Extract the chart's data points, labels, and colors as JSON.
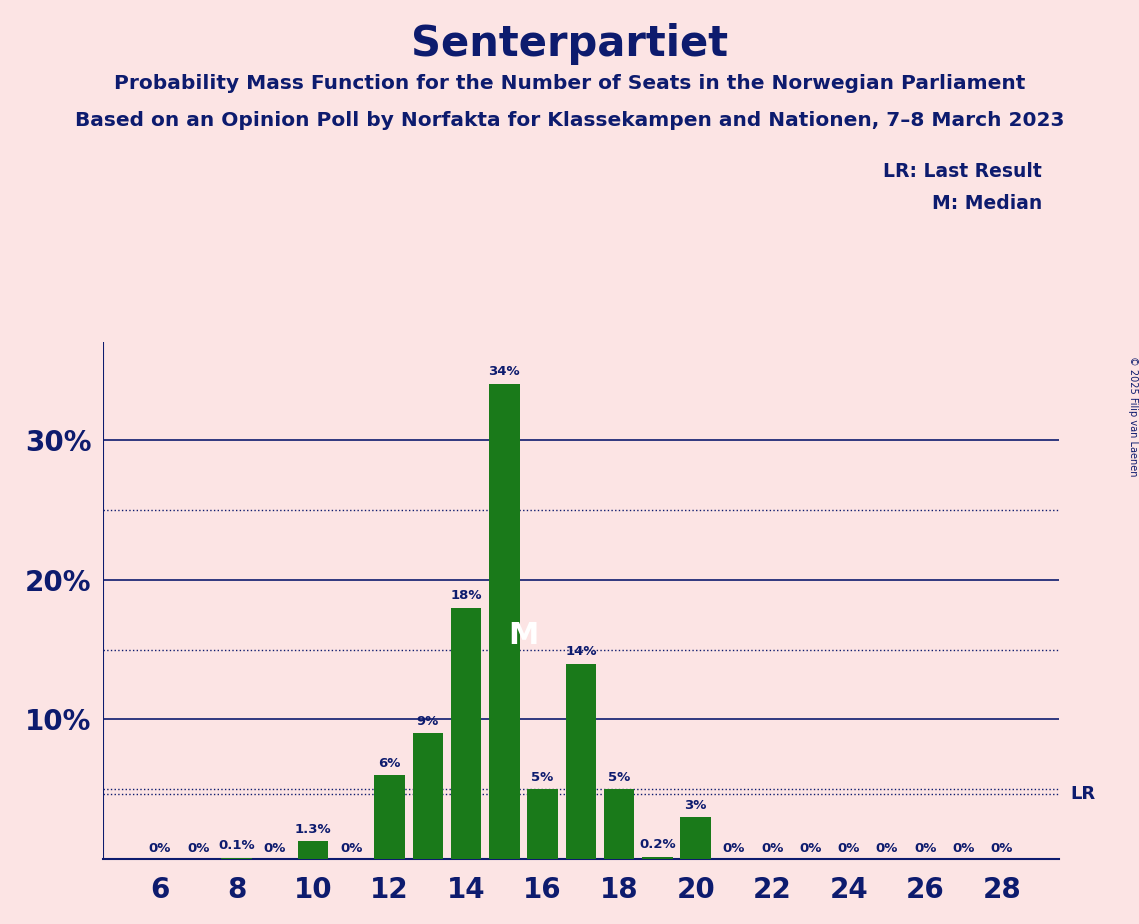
{
  "title": "Senterpartiet",
  "subtitle1": "Probability Mass Function for the Number of Seats in the Norwegian Parliament",
  "subtitle2": "Based on an Opinion Poll by Norfakta for Klassekampen and Nationen, 7–8 March 2023",
  "copyright": "© 2025 Filip van Laenen",
  "legend_lr": "LR: Last Result",
  "legend_m": "M: Median",
  "background_color": "#fce4e4",
  "bar_color": "#1a7a1a",
  "text_color": "#0d1b6e",
  "seats": [
    6,
    7,
    8,
    9,
    10,
    11,
    12,
    13,
    14,
    15,
    16,
    17,
    18,
    19,
    20,
    21,
    22,
    23,
    24,
    25,
    26,
    27,
    28
  ],
  "probabilities": [
    0.0,
    0.0,
    0.1,
    0.0,
    1.3,
    0.0,
    6.0,
    9.0,
    18.0,
    34.0,
    5.0,
    14.0,
    5.0,
    0.2,
    3.0,
    0.0,
    0.0,
    0.0,
    0.0,
    0.0,
    0.0,
    0.0,
    0.0
  ],
  "bar_labels": [
    "0%",
    "0%",
    "0.1%",
    "0%",
    "1.3%",
    "0%",
    "6%",
    "9%",
    "18%",
    "34%",
    "5%",
    "14%",
    "5%",
    "0.2%",
    "3%",
    "0%",
    "0%",
    "0%",
    "0%",
    "0%",
    "0%",
    "0%",
    "0%"
  ],
  "median_seat": 15,
  "lr_value": 4.7,
  "ylim": [
    0,
    37
  ],
  "dotted_lines": [
    5.0,
    15.0,
    25.0
  ],
  "solid_lines": [
    10.0,
    20.0,
    30.0
  ],
  "xticks": [
    6,
    8,
    10,
    12,
    14,
    16,
    18,
    20,
    22,
    24,
    26,
    28
  ],
  "bar_width": 0.8,
  "xlim_left": 4.5,
  "xlim_right": 29.5
}
